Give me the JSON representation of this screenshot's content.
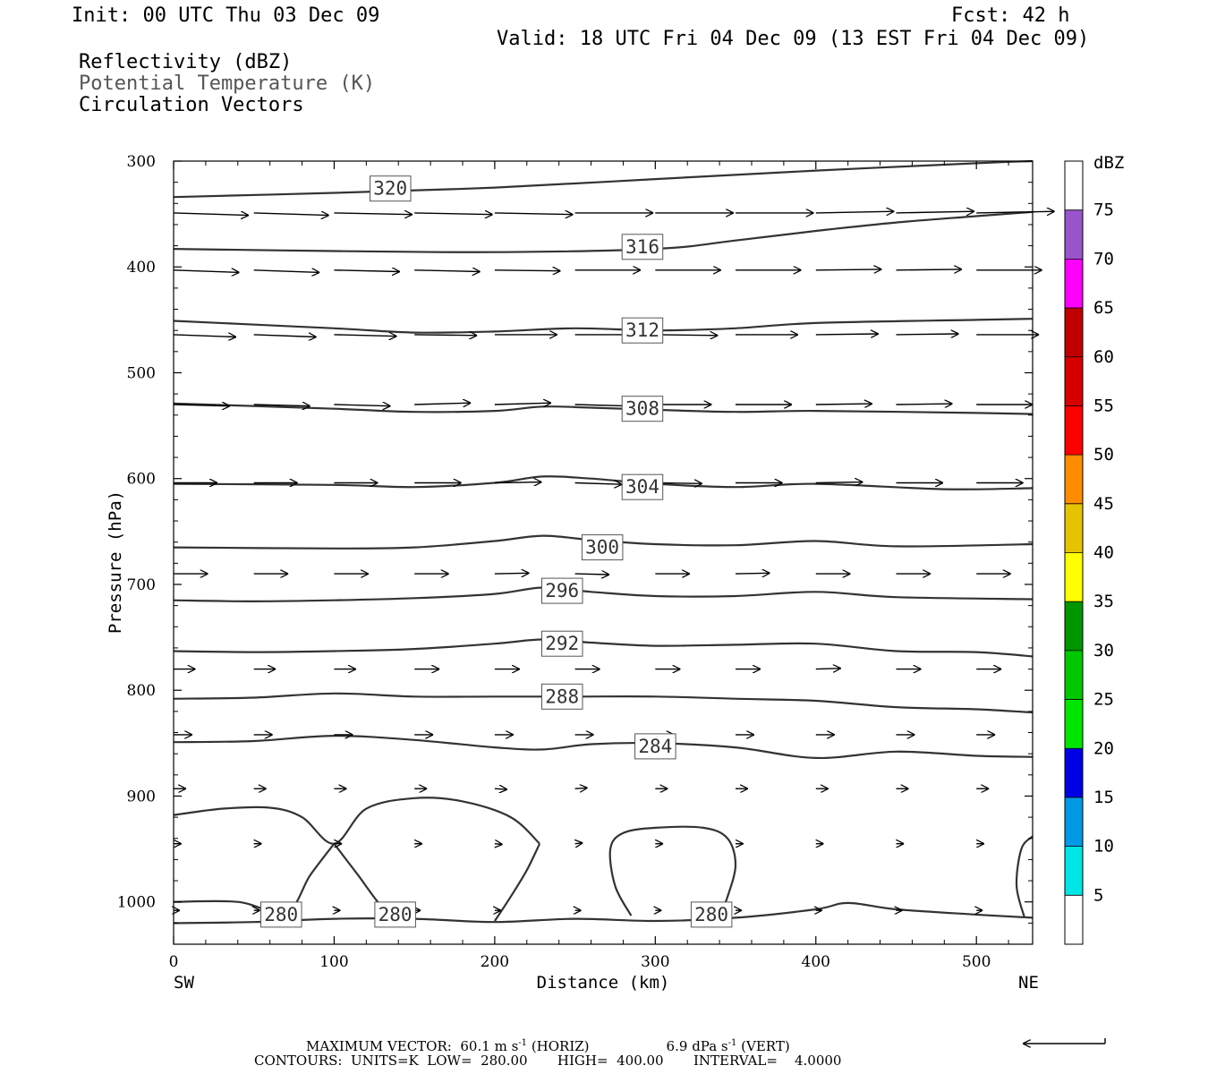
{
  "header": {
    "init": "Init: 00 UTC Thu 03 Dec 09",
    "fcst": "Fcst:   42 h",
    "valid": "Valid: 18 UTC Fri 04 Dec 09 (13 EST Fri 04 Dec 09)"
  },
  "fields": [
    "Reflectivity (dBZ)",
    "Potential Temperature (K)",
    "Circulation Vectors"
  ],
  "footer": {
    "max_vector_label": "MAXIMUM VECTOR:",
    "horiz_value": "60.1",
    "horiz_unit": "m s",
    "horiz_tag": "(HORIZ)",
    "vert_value": "6.9",
    "vert_unit": "dPa s",
    "vert_tag": "(VERT)",
    "unit_exponent": "-1",
    "contours_line": "CONTOURS:  UNITS=K  LOW=  280.00       HIGH=  400.00       INTERVAL=    4.0000"
  },
  "chart_data": {
    "type": "cross-section",
    "xlabel": "Distance (km)",
    "ylabel": "Pressure (hPa)",
    "x_end_labels": [
      "SW",
      "NE"
    ],
    "xlim": [
      0,
      535
    ],
    "ylim": [
      300,
      1040
    ],
    "x_ticks": [
      0,
      100,
      200,
      300,
      400,
      500
    ],
    "y_ticks": [
      300,
      400,
      500,
      600,
      700,
      800,
      900,
      1000
    ],
    "colorbar": {
      "unit_label": "dBZ",
      "levels": [
        5,
        10,
        15,
        20,
        25,
        30,
        35,
        40,
        45,
        50,
        55,
        60,
        65,
        70,
        75
      ],
      "colors": [
        "#ffffff",
        "#00e5e5",
        "#0099e5",
        "#0000e5",
        "#00e500",
        "#00c800",
        "#009600",
        "#ffff00",
        "#e5c300",
        "#ff8c00",
        "#ff0000",
        "#d70000",
        "#c00000",
        "#ff00ff",
        "#9955cc",
        "#ffffff"
      ]
    },
    "contour_labels": [
      {
        "text": "320",
        "x": 135,
        "p": 326
      },
      {
        "text": "316",
        "x": 292,
        "p": 381
      },
      {
        "text": "312",
        "x": 292,
        "p": 460
      },
      {
        "text": "308",
        "x": 292,
        "p": 534
      },
      {
        "text": "304",
        "x": 292,
        "p": 608
      },
      {
        "text": "300",
        "x": 267,
        "p": 665
      },
      {
        "text": "296",
        "x": 242,
        "p": 706
      },
      {
        "text": "292",
        "x": 242,
        "p": 756
      },
      {
        "text": "288",
        "x": 242,
        "p": 806
      },
      {
        "text": "284",
        "x": 300,
        "p": 853
      },
      {
        "text": "280",
        "x": 67,
        "p": 1012
      },
      {
        "text": "280",
        "x": 138,
        "p": 1012
      },
      {
        "text": "280",
        "x": 335,
        "p": 1012
      }
    ],
    "isentropes": [
      {
        "level": 320,
        "x": [
          0,
          100,
          200,
          300,
          400,
          500,
          535
        ],
        "p": [
          334,
          330,
          325,
          317,
          309,
          302,
          300
        ]
      },
      {
        "level": 316,
        "x": [
          0,
          100,
          200,
          300,
          350,
          400,
          450,
          500,
          535
        ],
        "p": [
          383,
          385,
          386,
          383,
          375,
          366,
          358,
          352,
          348
        ]
      },
      {
        "level": 312,
        "x": [
          0,
          100,
          150,
          200,
          250,
          300,
          350,
          400,
          500,
          535
        ],
        "p": [
          451,
          458,
          462,
          461,
          458,
          460,
          458,
          453,
          450,
          449
        ]
      },
      {
        "level": 308,
        "x": [
          0,
          100,
          150,
          200,
          230,
          260,
          300,
          350,
          400,
          500,
          535
        ],
        "p": [
          529,
          534,
          537,
          536,
          532,
          533,
          535,
          537,
          536,
          538,
          539
        ]
      },
      {
        "level": 304,
        "x": [
          0,
          100,
          150,
          200,
          230,
          260,
          300,
          350,
          400,
          480,
          535
        ],
        "p": [
          605,
          606,
          608,
          604,
          598,
          600,
          605,
          608,
          605,
          610,
          609
        ]
      },
      {
        "level": 300,
        "x": [
          0,
          100,
          150,
          200,
          230,
          260,
          300,
          350,
          400,
          450,
          535
        ],
        "p": [
          665,
          666,
          665,
          659,
          654,
          658,
          662,
          663,
          659,
          664,
          662
        ]
      },
      {
        "level": 296,
        "x": [
          0,
          50,
          100,
          150,
          200,
          230,
          260,
          300,
          350,
          400,
          450,
          535
        ],
        "p": [
          715,
          716,
          715,
          713,
          709,
          703,
          707,
          711,
          711,
          707,
          712,
          714
        ]
      },
      {
        "level": 292,
        "x": [
          0,
          50,
          100,
          150,
          200,
          230,
          260,
          300,
          350,
          400,
          450,
          500,
          535
        ],
        "p": [
          763,
          764,
          763,
          761,
          756,
          752,
          755,
          758,
          757,
          756,
          763,
          764,
          768
        ]
      },
      {
        "level": 288,
        "x": [
          0,
          50,
          100,
          150,
          200,
          250,
          300,
          350,
          400,
          450,
          500,
          535
        ],
        "p": [
          808,
          807,
          803,
          806,
          806,
          806,
          806,
          808,
          810,
          816,
          818,
          821
        ]
      },
      {
        "level": 284,
        "x": [
          0,
          50,
          100,
          150,
          200,
          230,
          260,
          300,
          350,
          400,
          450,
          500,
          535
        ],
        "p": [
          849,
          848,
          843,
          847,
          854,
          856,
          851,
          850,
          854,
          864,
          858,
          862,
          863
        ]
      },
      {
        "level": 280,
        "x": [
          0,
          50,
          100,
          150,
          200,
          250,
          300,
          350,
          400,
          420,
          450,
          500,
          535
        ],
        "p": [
          1020,
          1019,
          1016,
          1016,
          1019,
          1016,
          1018,
          1015,
          1007,
          1001,
          1007,
          1012,
          1015
        ]
      },
      {
        "level": 280,
        "x": [
          0,
          30,
          60,
          80,
          100,
          120,
          150,
          180,
          210,
          228
        ],
        "p": [
          918,
          912,
          911,
          920,
          945,
          912,
          902,
          905,
          920,
          945
        ]
      },
      {
        "level": 280,
        "x": [
          228,
          220,
          210,
          200
        ],
        "p": [
          945,
          970,
          995,
          1018
        ]
      },
      {
        "level": 280,
        "x": [
          0,
          40,
          70,
          85,
          100
        ],
        "p": [
          1000,
          1000,
          1010,
          975,
          945
        ]
      },
      {
        "level": 280,
        "x": [
          100,
          115,
          130,
          140
        ],
        "p": [
          945,
          975,
          1005,
          1012
        ]
      },
      {
        "level": 280,
        "x": [
          285,
          275,
          272,
          280,
          300,
          330,
          345,
          350,
          345,
          340
        ],
        "p": [
          1013,
          985,
          950,
          935,
          930,
          930,
          940,
          965,
          995,
          1013
        ]
      },
      {
        "level": 280,
        "x": [
          530,
          525,
          528,
          535
        ],
        "p": [
          1015,
          985,
          950,
          938
        ]
      }
    ],
    "vectors": [
      {
        "p": 349,
        "x": [
          0,
          50,
          100,
          150,
          200,
          250,
          300,
          350,
          400,
          450,
          500
        ],
        "u": [
          48,
          48,
          50,
          50,
          50,
          50,
          50,
          50,
          50,
          50,
          50
        ],
        "w": [
          -1.5,
          -1.5,
          -1,
          -1,
          -1,
          0,
          0,
          0,
          1,
          1,
          1
        ]
      },
      {
        "p": 403,
        "x": [
          0,
          50,
          100,
          150,
          200,
          250,
          300,
          350,
          400,
          450,
          500
        ],
        "u": [
          42,
          42,
          42,
          42,
          42,
          42,
          42,
          42,
          42,
          42,
          42
        ],
        "w": [
          -1.5,
          -1.5,
          -1,
          -1,
          -0.5,
          0,
          0,
          0,
          0.5,
          0.5,
          0
        ]
      },
      {
        "p": 464,
        "x": [
          0,
          50,
          100,
          150,
          200,
          250,
          300,
          350,
          400,
          450,
          500
        ],
        "u": [
          40,
          40,
          40,
          40,
          40,
          40,
          40,
          40,
          40,
          40,
          40
        ],
        "w": [
          -1.5,
          -1.5,
          -1,
          -0.5,
          0,
          0,
          -0.5,
          0,
          0.5,
          0.5,
          0
        ]
      },
      {
        "p": 530,
        "x": [
          0,
          50,
          100,
          150,
          200,
          250,
          300,
          350,
          400,
          450,
          500
        ],
        "u": [
          36,
          36,
          36,
          36,
          36,
          36,
          36,
          36,
          36,
          36,
          36
        ],
        "w": [
          -1,
          -1,
          -1,
          1,
          1,
          -1,
          0,
          0,
          0.5,
          0.5,
          0
        ]
      },
      {
        "p": 604,
        "x": [
          0,
          50,
          100,
          150,
          200,
          250,
          300,
          350,
          400,
          450,
          500
        ],
        "u": [
          28,
          28,
          28,
          30,
          30,
          30,
          30,
          30,
          30,
          30,
          30
        ],
        "w": [
          0,
          0,
          0,
          0,
          0.5,
          -1,
          -0.5,
          0,
          0.5,
          0,
          0
        ]
      },
      {
        "p": 690,
        "x": [
          0,
          50,
          100,
          150,
          200,
          250,
          300,
          350,
          400,
          450,
          500
        ],
        "u": [
          22,
          22,
          22,
          22,
          22,
          22,
          22,
          22,
          22,
          22,
          22
        ],
        "w": [
          0,
          0,
          0,
          0,
          0.5,
          -0.5,
          0,
          0.5,
          0,
          0,
          0
        ]
      },
      {
        "p": 780,
        "x": [
          0,
          50,
          100,
          150,
          200,
          250,
          300,
          350,
          400,
          450,
          500
        ],
        "u": [
          14,
          14,
          14,
          16,
          16,
          16,
          16,
          16,
          16,
          16,
          16
        ],
        "w": [
          0,
          0,
          0,
          0,
          0,
          0,
          0,
          0,
          0.5,
          0,
          0
        ]
      },
      {
        "p": 842,
        "x": [
          0,
          50,
          100,
          150,
          200,
          250,
          300,
          350,
          400,
          450,
          500
        ],
        "u": [
          12,
          12,
          12,
          12,
          12,
          12,
          12,
          12,
          12,
          12,
          12
        ],
        "w": [
          0,
          0,
          0,
          0,
          0,
          0,
          0,
          0,
          0,
          0,
          0
        ]
      },
      {
        "p": 893,
        "x": [
          0,
          50,
          100,
          150,
          200,
          250,
          300,
          350,
          400,
          450,
          500
        ],
        "u": [
          8,
          8,
          8,
          8,
          8,
          8,
          8,
          8,
          8,
          8,
          8
        ],
        "w": [
          0,
          0,
          0,
          0,
          -0.5,
          0.5,
          0,
          0,
          0,
          0,
          0
        ]
      },
      {
        "p": 945,
        "x": [
          0,
          50,
          100,
          150,
          200,
          250,
          300,
          350,
          400,
          450,
          500
        ],
        "u": [
          5,
          5,
          5,
          5,
          5,
          5,
          5,
          5,
          5,
          5,
          5
        ],
        "w": [
          0,
          0,
          0,
          0,
          -0.5,
          0.5,
          0,
          0,
          0,
          0,
          0
        ]
      },
      {
        "p": 1008,
        "x": [
          0,
          50,
          100,
          150,
          200,
          250,
          300,
          350,
          400,
          450,
          500
        ],
        "u": [
          4,
          4,
          4,
          4,
          4,
          4,
          4,
          4,
          4,
          4,
          4
        ],
        "w": [
          0,
          0,
          0,
          0,
          0,
          0,
          0,
          0,
          0,
          0,
          0
        ]
      }
    ],
    "vector_scale": 1.75,
    "reference_vector": {
      "direction": "left"
    }
  }
}
